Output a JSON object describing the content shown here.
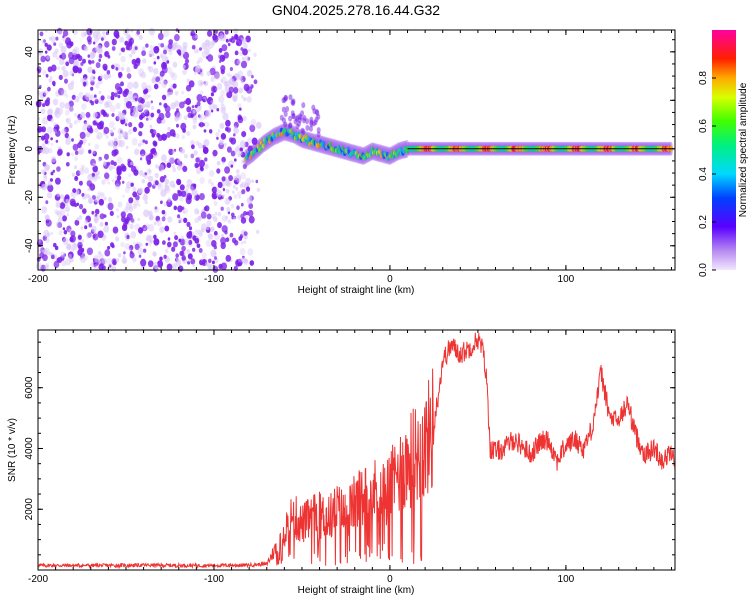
{
  "figure": {
    "title": "GN04.2025.278.16.44.G32"
  },
  "colors": {
    "line": "#ee3333",
    "frame": "#000000",
    "scatter": "#7a1fe8",
    "scatter_light": "#d9c6f7"
  },
  "chart_data": [
    {
      "type": "heatmap",
      "title": "GN04.2025.278.16.44.G32",
      "xlabel": "Height of straight line (km)",
      "ylabel": "Frequency (Hz)",
      "xlim": [
        -200,
        162
      ],
      "ylim": [
        -50,
        49
      ],
      "xticks": [
        -200,
        -100,
        0,
        100
      ],
      "yticks": [
        -40,
        -20,
        0,
        20,
        40
      ],
      "noise_region_x": [
        -200,
        -78
      ],
      "signal_track": {
        "x": [
          -82,
          -78,
          -72,
          -66,
          -60,
          -55,
          -50,
          -45,
          -40,
          -35,
          -30,
          -25,
          -20,
          -15,
          -10,
          -5,
          0,
          5,
          10,
          20,
          40,
          60,
          80,
          100,
          120,
          140,
          160
        ],
        "y": [
          -4,
          -2,
          2,
          5,
          7,
          6,
          4,
          3,
          2,
          1,
          0,
          -1,
          -2,
          -3,
          -1,
          -2,
          -3,
          -1,
          0,
          0,
          0,
          0,
          0,
          0,
          0,
          0,
          0
        ],
        "strong_band_x": [
          10,
          160
        ],
        "peak_amplitude": 0.95
      },
      "colorbar": {
        "label": "Normalized spectral amplitude",
        "range": [
          0,
          1
        ],
        "ticks": [
          "0.0",
          "0.2",
          "0.4",
          "0.6",
          "0.8"
        ]
      }
    },
    {
      "type": "line",
      "xlabel": "Height of straight line (km)",
      "ylabel": "SNR (10 * v/v)",
      "xlim": [
        -200,
        162
      ],
      "ylim": [
        0,
        7900
      ],
      "xticks": [
        -200,
        -100,
        0,
        100
      ],
      "yticks": [
        2000,
        4000,
        6000
      ],
      "series": [
        {
          "name": "SNR",
          "x": [
            -200,
            -180,
            -160,
            -140,
            -120,
            -100,
            -80,
            -70,
            -65,
            -60,
            -55,
            -50,
            -45,
            -40,
            -35,
            -30,
            -25,
            -20,
            -15,
            -10,
            -5,
            0,
            5,
            10,
            15,
            20,
            25,
            28,
            30,
            35,
            40,
            45,
            50,
            53,
            55,
            57,
            60,
            65,
            70,
            75,
            80,
            85,
            90,
            95,
            100,
            105,
            110,
            115,
            120,
            123,
            125,
            130,
            135,
            140,
            145,
            150,
            155,
            160,
            162
          ],
          "y": [
            150,
            150,
            150,
            160,
            150,
            150,
            160,
            200,
            700,
            1300,
            1800,
            1500,
            1700,
            1800,
            1700,
            2000,
            1800,
            2200,
            2400,
            2600,
            2500,
            2700,
            3200,
            3500,
            3800,
            4100,
            4800,
            6000,
            6900,
            7400,
            7100,
            7300,
            7600,
            7200,
            6200,
            4000,
            3900,
            4000,
            4300,
            4100,
            3800,
            4200,
            4300,
            3600,
            4100,
            4300,
            4000,
            4700,
            6500,
            5600,
            5000,
            4900,
            5500,
            4400,
            3800,
            4000,
            3600,
            3900,
            3400
          ]
        }
      ]
    }
  ]
}
